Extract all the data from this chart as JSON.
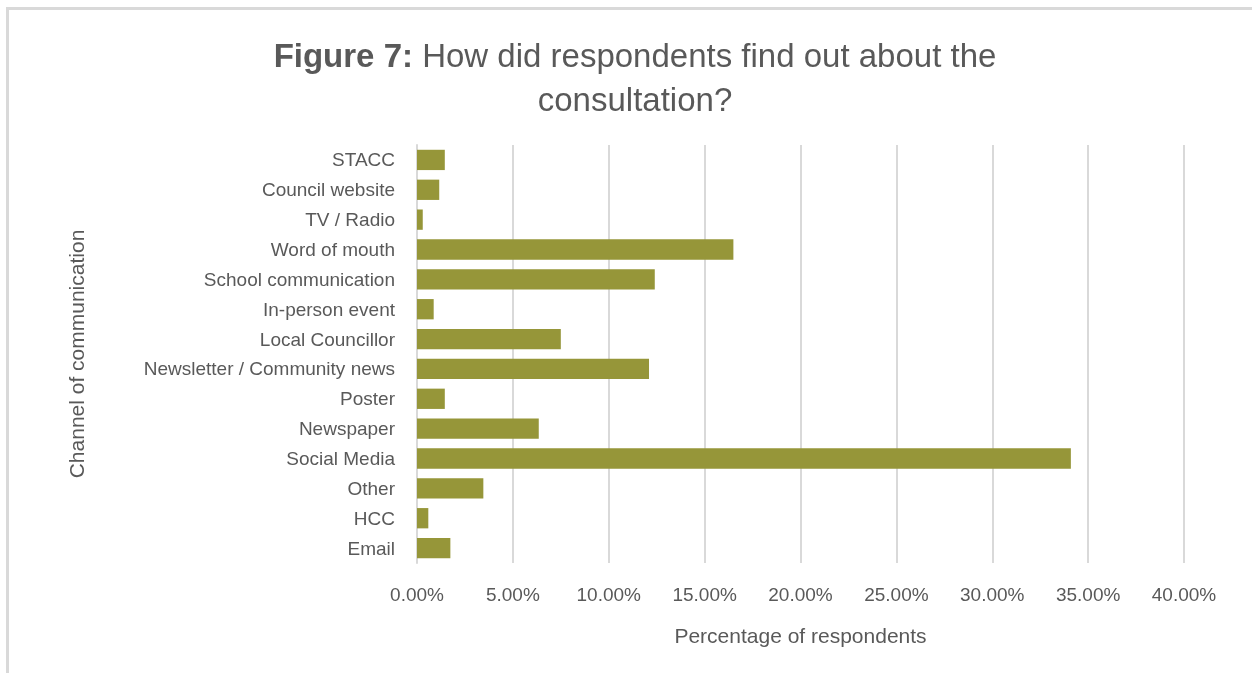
{
  "chart_data": {
    "type": "bar",
    "orientation": "horizontal",
    "title": "Figure 7: How did respondents find out about the consultation?",
    "xlabel": "Percentage of respondents",
    "ylabel": "Channel of communication",
    "categories": [
      "STACC",
      "Council website",
      "TV / Radio",
      "Word of mouth",
      "School communication",
      "In-person event",
      "Local Councillor",
      "Newsletter / Community news",
      "Poster",
      "Newspaper",
      "Social Media",
      "Other",
      "HCC",
      "Email"
    ],
    "values": [
      1.45,
      1.16,
      0.3,
      16.5,
      12.4,
      0.87,
      7.5,
      12.1,
      1.45,
      6.35,
      34.1,
      3.46,
      0.59,
      1.74
    ],
    "color": "#969639",
    "xlim": [
      0,
      40
    ],
    "xticks": [
      {
        "value": 0,
        "label": "0.00%"
      },
      {
        "value": 5,
        "label": "5.00%"
      },
      {
        "value": 10,
        "label": "10.00%"
      },
      {
        "value": 15,
        "label": "15.00%"
      },
      {
        "value": 20,
        "label": "20.00%"
      },
      {
        "value": 25,
        "label": "25.00%"
      },
      {
        "value": 30,
        "label": "30.00%"
      },
      {
        "value": 35,
        "label": "35.00%"
      },
      {
        "value": 40,
        "label": "40.00%"
      }
    ],
    "grid": "x"
  }
}
